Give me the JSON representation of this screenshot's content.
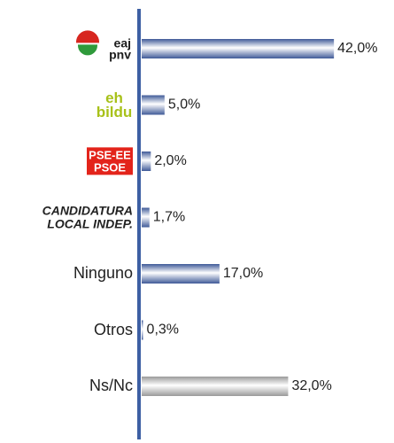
{
  "chart_data": {
    "type": "bar",
    "orientation": "horizontal",
    "categories": [
      "eaj pnv",
      "eh bildu",
      "PSE-EE PSOE",
      "CANDIDATURA LOCAL INDEP.",
      "Ninguno",
      "Otros",
      "Ns/Nc"
    ],
    "values": [
      42,
      5,
      2,
      1.7,
      17,
      0.3,
      32
    ],
    "value_labels": [
      "42,0%",
      "5,0%",
      "2,0%",
      "1,7%",
      "17,0%",
      "0,3%",
      "32,0%"
    ],
    "colors": [
      "#3f5a98",
      "#3f5a98",
      "#3f5a98",
      "#3f5a98",
      "#3f5a98",
      "#3f5a98",
      "#9a9a9a"
    ],
    "axis_color": "#3d5fa3"
  }
}
